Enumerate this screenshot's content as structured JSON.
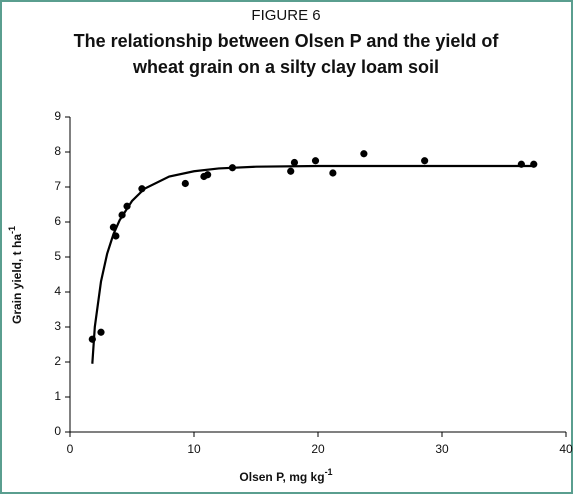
{
  "chart_data": {
    "type": "scatter",
    "figure_label": "FIGURE 6",
    "title": [
      "The relationship between Olsen P and the yield of",
      "wheat grain on a silty clay loam soil"
    ],
    "xlabel": {
      "text": "Olsen P, mg kg",
      "sup": "-1"
    },
    "ylabel": {
      "text": "Grain yield, t ha",
      "sup": "-1"
    },
    "xlim": [
      0,
      40
    ],
    "xticks": [
      0,
      10,
      20,
      30,
      40
    ],
    "ylim": [
      0,
      9
    ],
    "yticks": [
      0,
      1,
      2,
      3,
      4,
      5,
      6,
      7,
      8,
      9
    ],
    "color": "#000000",
    "points": {
      "x": [
        1.8,
        2.5,
        3.5,
        3.7,
        4.2,
        4.6,
        5.8,
        9.3,
        10.8,
        11.1,
        13.1,
        17.8,
        18.1,
        19.8,
        21.2,
        23.7,
        28.6,
        36.4,
        37.4
      ],
      "values": [
        2.65,
        2.85,
        5.85,
        5.6,
        6.2,
        6.45,
        6.95,
        7.1,
        7.3,
        7.35,
        7.55,
        7.45,
        7.7,
        7.75,
        7.4,
        7.95,
        7.75,
        7.65,
        7.65
      ]
    },
    "curve": {
      "x": [
        1.8,
        2,
        2.5,
        3,
        3.5,
        4,
        5,
        6,
        8,
        10,
        12,
        15,
        20,
        25,
        30,
        37.5
      ],
      "values": [
        1.95,
        3.0,
        4.3,
        5.1,
        5.65,
        6.05,
        6.6,
        6.95,
        7.3,
        7.45,
        7.53,
        7.58,
        7.6,
        7.6,
        7.6,
        7.6
      ]
    }
  }
}
